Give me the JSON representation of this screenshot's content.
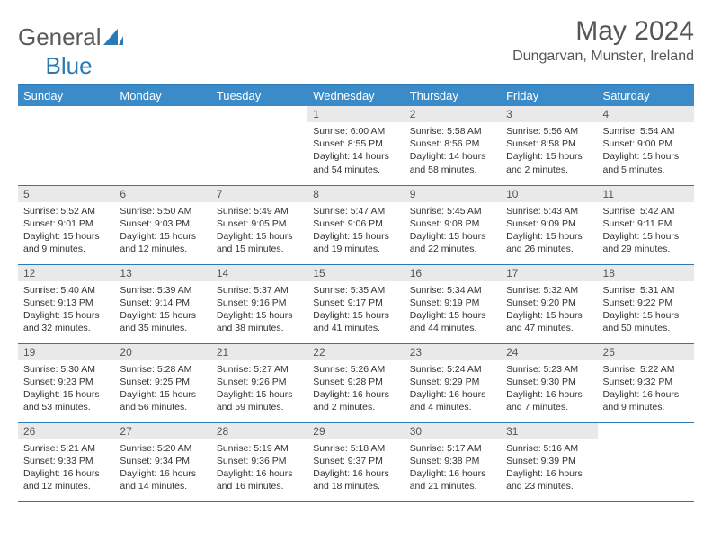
{
  "brand": {
    "part1": "General",
    "part2": "Blue"
  },
  "title": "May 2024",
  "location": "Dungarvan, Munster, Ireland",
  "colors": {
    "header_bg": "#3b8bc8",
    "rule": "#2a7ab8",
    "daynum_bg": "#e9e9e9",
    "text": "#333333",
    "title_text": "#555555"
  },
  "weekdays": [
    "Sunday",
    "Monday",
    "Tuesday",
    "Wednesday",
    "Thursday",
    "Friday",
    "Saturday"
  ],
  "weeks": [
    [
      null,
      null,
      null,
      {
        "n": "1",
        "sr": "6:00 AM",
        "ss": "8:55 PM",
        "dl": "14 hours and 54 minutes."
      },
      {
        "n": "2",
        "sr": "5:58 AM",
        "ss": "8:56 PM",
        "dl": "14 hours and 58 minutes."
      },
      {
        "n": "3",
        "sr": "5:56 AM",
        "ss": "8:58 PM",
        "dl": "15 hours and 2 minutes."
      },
      {
        "n": "4",
        "sr": "5:54 AM",
        "ss": "9:00 PM",
        "dl": "15 hours and 5 minutes."
      }
    ],
    [
      {
        "n": "5",
        "sr": "5:52 AM",
        "ss": "9:01 PM",
        "dl": "15 hours and 9 minutes."
      },
      {
        "n": "6",
        "sr": "5:50 AM",
        "ss": "9:03 PM",
        "dl": "15 hours and 12 minutes."
      },
      {
        "n": "7",
        "sr": "5:49 AM",
        "ss": "9:05 PM",
        "dl": "15 hours and 15 minutes."
      },
      {
        "n": "8",
        "sr": "5:47 AM",
        "ss": "9:06 PM",
        "dl": "15 hours and 19 minutes."
      },
      {
        "n": "9",
        "sr": "5:45 AM",
        "ss": "9:08 PM",
        "dl": "15 hours and 22 minutes."
      },
      {
        "n": "10",
        "sr": "5:43 AM",
        "ss": "9:09 PM",
        "dl": "15 hours and 26 minutes."
      },
      {
        "n": "11",
        "sr": "5:42 AM",
        "ss": "9:11 PM",
        "dl": "15 hours and 29 minutes."
      }
    ],
    [
      {
        "n": "12",
        "sr": "5:40 AM",
        "ss": "9:13 PM",
        "dl": "15 hours and 32 minutes."
      },
      {
        "n": "13",
        "sr": "5:39 AM",
        "ss": "9:14 PM",
        "dl": "15 hours and 35 minutes."
      },
      {
        "n": "14",
        "sr": "5:37 AM",
        "ss": "9:16 PM",
        "dl": "15 hours and 38 minutes."
      },
      {
        "n": "15",
        "sr": "5:35 AM",
        "ss": "9:17 PM",
        "dl": "15 hours and 41 minutes."
      },
      {
        "n": "16",
        "sr": "5:34 AM",
        "ss": "9:19 PM",
        "dl": "15 hours and 44 minutes."
      },
      {
        "n": "17",
        "sr": "5:32 AM",
        "ss": "9:20 PM",
        "dl": "15 hours and 47 minutes."
      },
      {
        "n": "18",
        "sr": "5:31 AM",
        "ss": "9:22 PM",
        "dl": "15 hours and 50 minutes."
      }
    ],
    [
      {
        "n": "19",
        "sr": "5:30 AM",
        "ss": "9:23 PM",
        "dl": "15 hours and 53 minutes."
      },
      {
        "n": "20",
        "sr": "5:28 AM",
        "ss": "9:25 PM",
        "dl": "15 hours and 56 minutes."
      },
      {
        "n": "21",
        "sr": "5:27 AM",
        "ss": "9:26 PM",
        "dl": "15 hours and 59 minutes."
      },
      {
        "n": "22",
        "sr": "5:26 AM",
        "ss": "9:28 PM",
        "dl": "16 hours and 2 minutes."
      },
      {
        "n": "23",
        "sr": "5:24 AM",
        "ss": "9:29 PM",
        "dl": "16 hours and 4 minutes."
      },
      {
        "n": "24",
        "sr": "5:23 AM",
        "ss": "9:30 PM",
        "dl": "16 hours and 7 minutes."
      },
      {
        "n": "25",
        "sr": "5:22 AM",
        "ss": "9:32 PM",
        "dl": "16 hours and 9 minutes."
      }
    ],
    [
      {
        "n": "26",
        "sr": "5:21 AM",
        "ss": "9:33 PM",
        "dl": "16 hours and 12 minutes."
      },
      {
        "n": "27",
        "sr": "5:20 AM",
        "ss": "9:34 PM",
        "dl": "16 hours and 14 minutes."
      },
      {
        "n": "28",
        "sr": "5:19 AM",
        "ss": "9:36 PM",
        "dl": "16 hours and 16 minutes."
      },
      {
        "n": "29",
        "sr": "5:18 AM",
        "ss": "9:37 PM",
        "dl": "16 hours and 18 minutes."
      },
      {
        "n": "30",
        "sr": "5:17 AM",
        "ss": "9:38 PM",
        "dl": "16 hours and 21 minutes."
      },
      {
        "n": "31",
        "sr": "5:16 AM",
        "ss": "9:39 PM",
        "dl": "16 hours and 23 minutes."
      },
      null
    ]
  ],
  "labels": {
    "sunrise": "Sunrise:",
    "sunset": "Sunset:",
    "daylight": "Daylight:"
  }
}
